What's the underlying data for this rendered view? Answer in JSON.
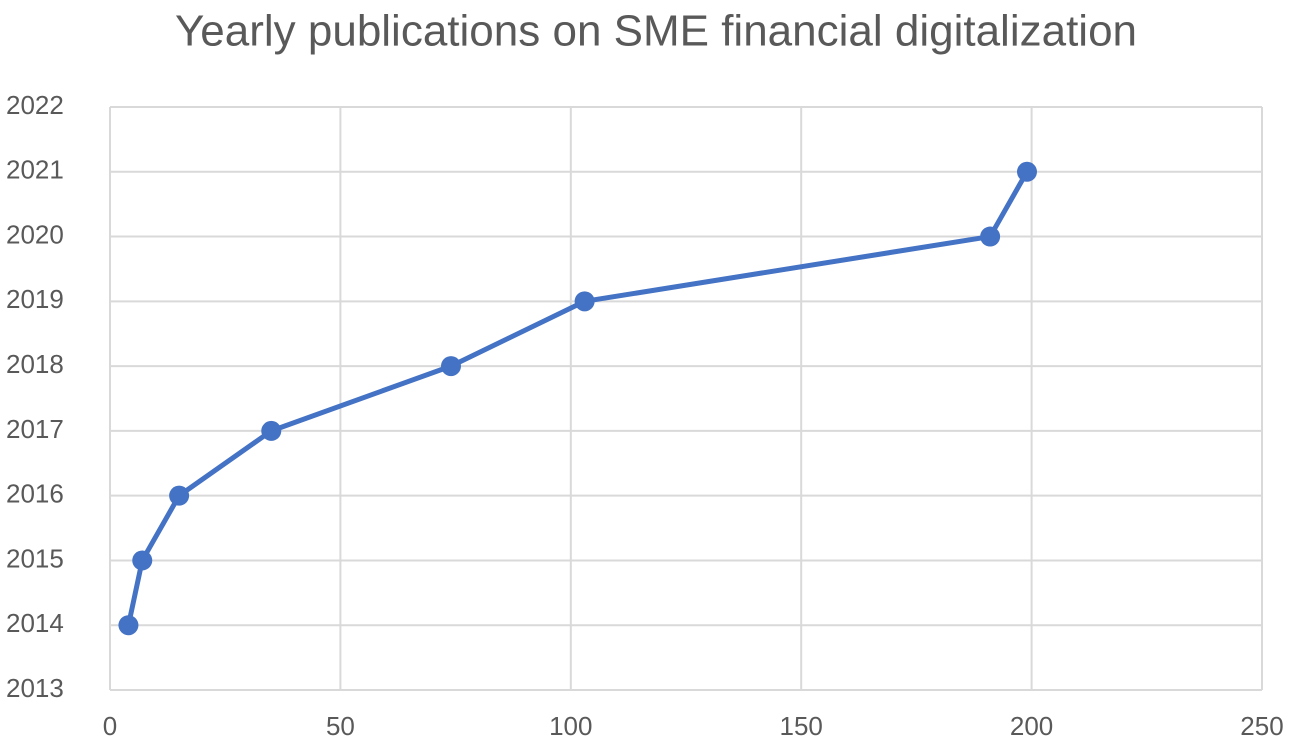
{
  "chart_data": {
    "type": "line",
    "title": "Yearly publications on SME financial digitalization",
    "x": [
      4,
      7,
      15,
      35,
      74,
      103,
      191,
      199
    ],
    "series": [
      {
        "color": "#4472c4",
        "values": [
          2014,
          2015,
          2016,
          2017,
          2018,
          2019,
          2020,
          2021
        ]
      }
    ],
    "xlim": [
      0,
      250
    ],
    "xticks": [
      0,
      50,
      100,
      150,
      200,
      250
    ],
    "ylim": [
      2013,
      2022
    ],
    "yticks": [
      2013,
      2014,
      2015,
      2016,
      2017,
      2018,
      2019,
      2020,
      2021,
      2022
    ],
    "grid": true
  }
}
